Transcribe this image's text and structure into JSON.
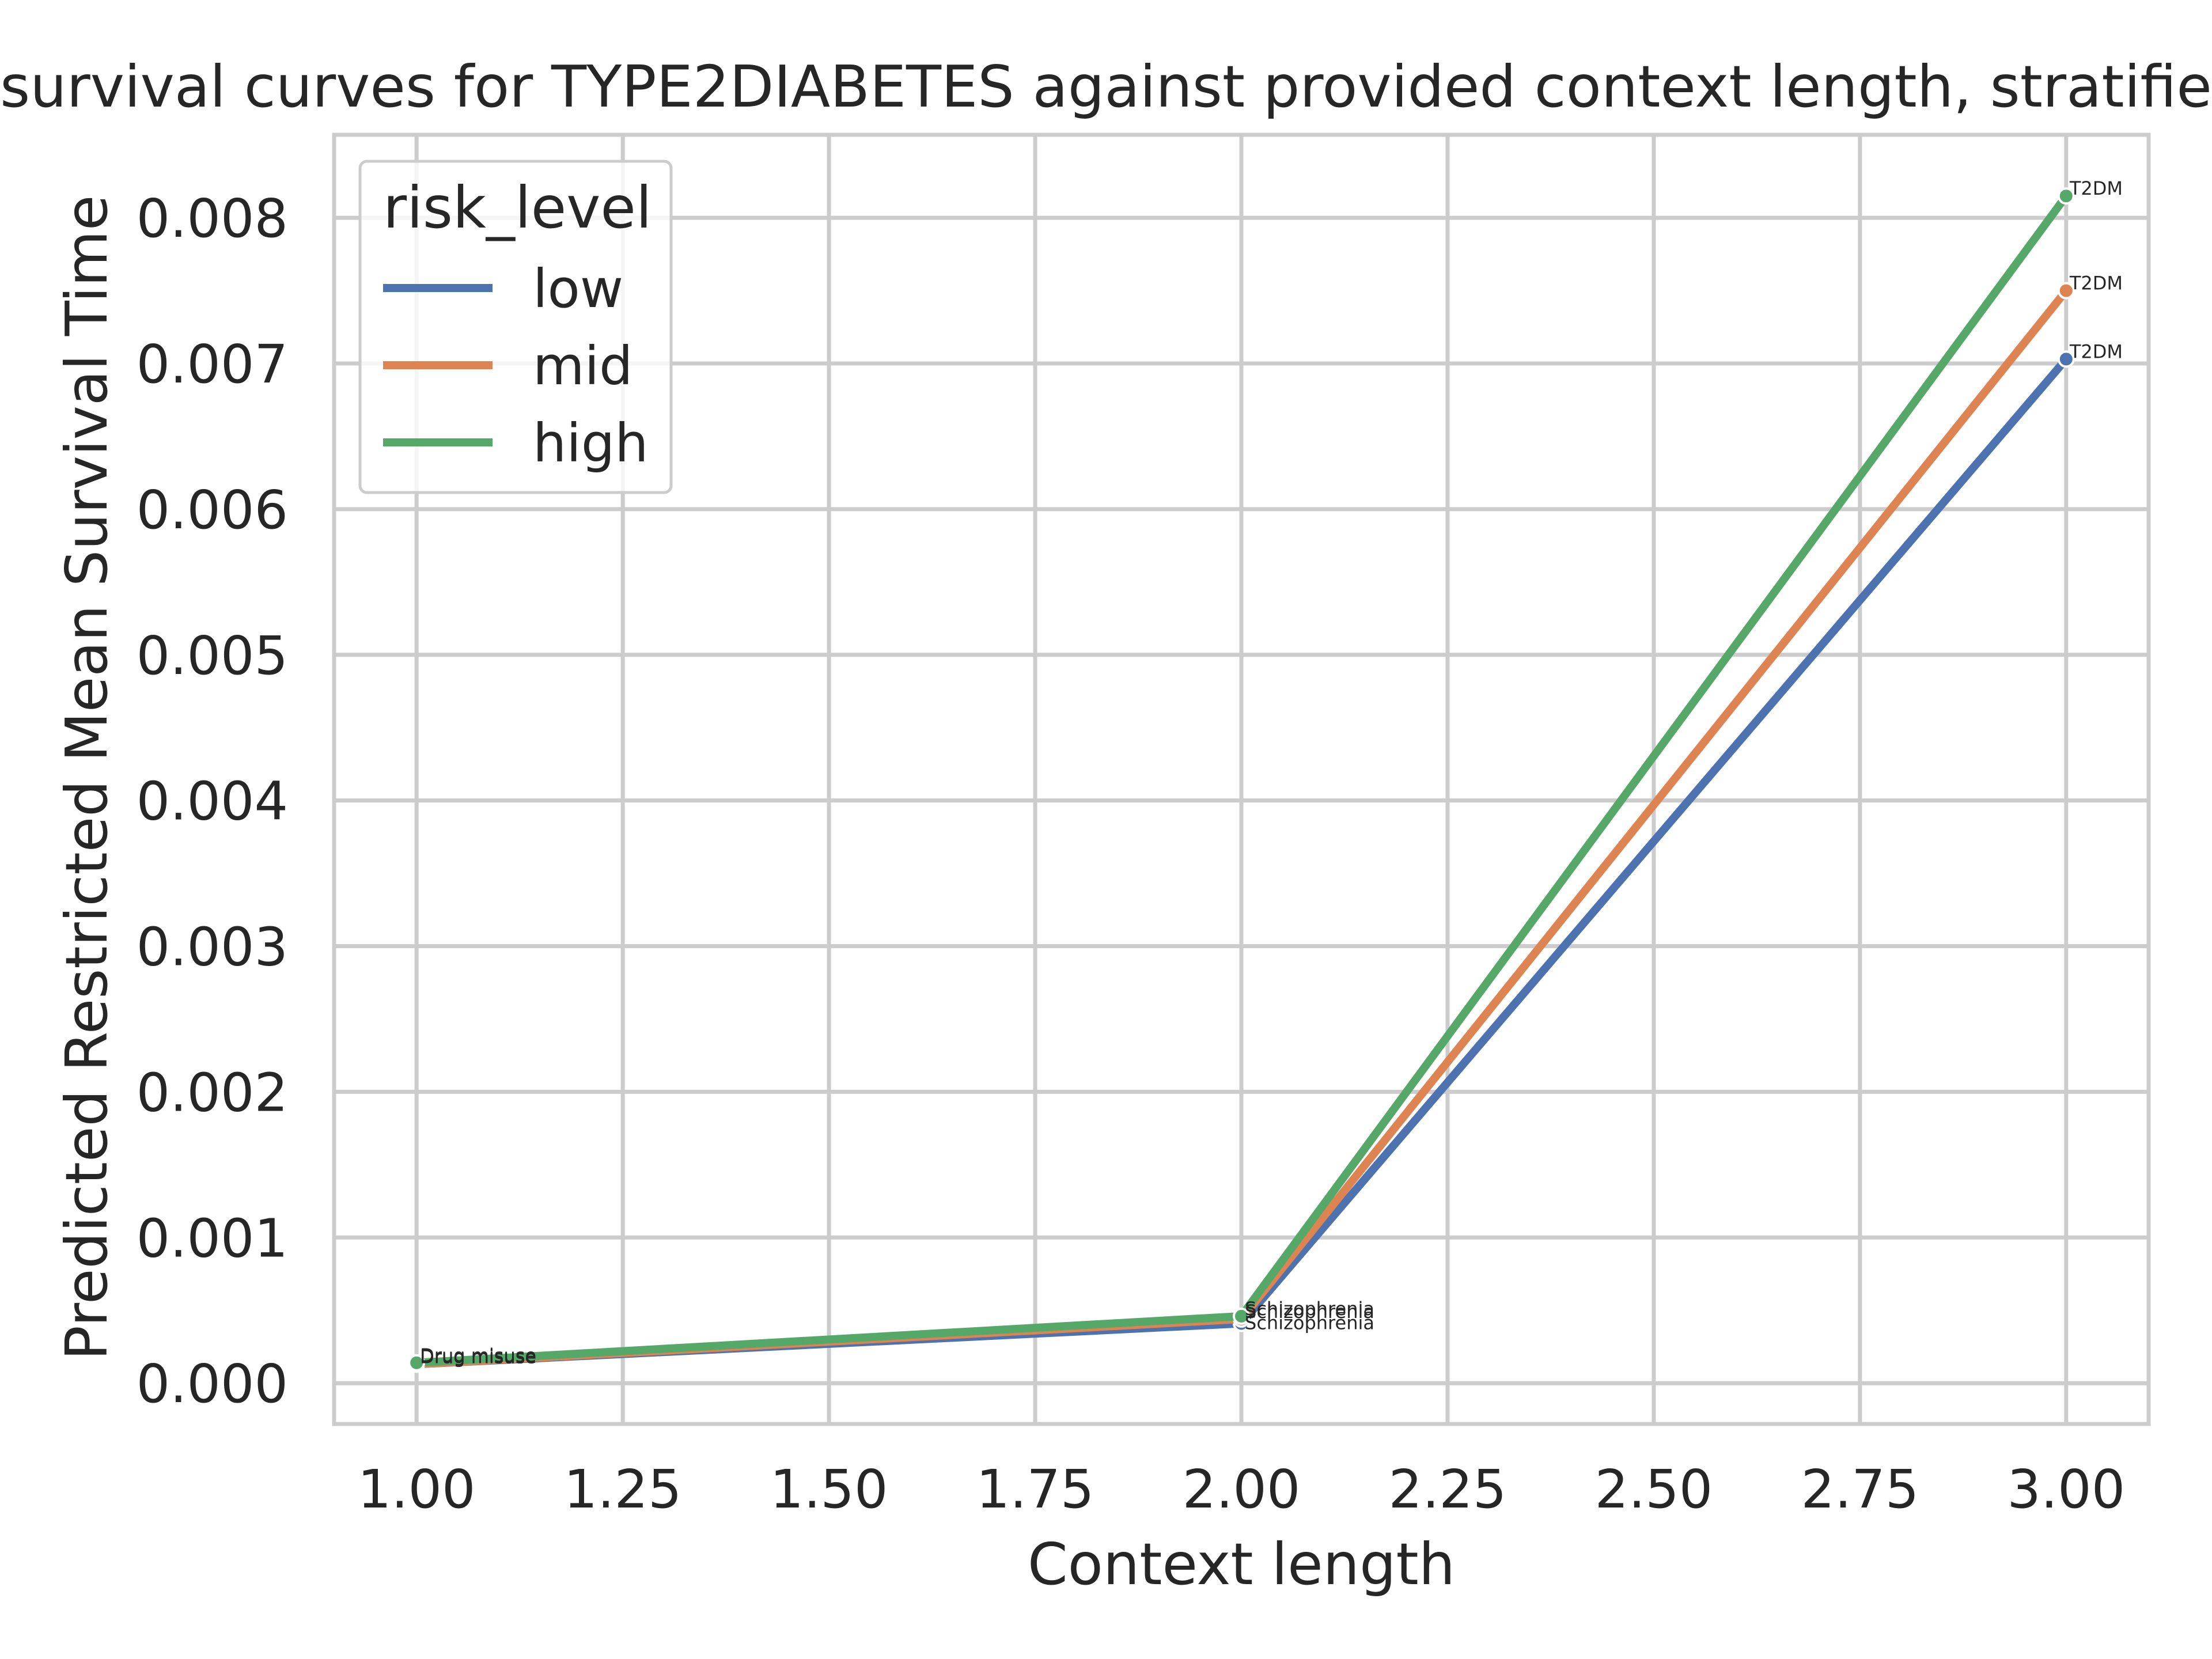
{
  "chart_data": {
    "type": "line",
    "title": "survival curves for TYPE2DIABETES against provided context length, stratifie",
    "xlabel": "Context length",
    "ylabel": "Predicted Restricted Mean Survival Time",
    "xlim": [
      0.9,
      3.1
    ],
    "ylim": [
      -0.00028,
      0.00857
    ],
    "xticks": [
      1.0,
      1.25,
      1.5,
      1.75,
      2.0,
      2.25,
      2.5,
      2.75,
      3.0
    ],
    "xtick_labels": [
      "1.00",
      "1.25",
      "1.50",
      "1.75",
      "2.00",
      "2.25",
      "2.50",
      "2.75",
      "3.00"
    ],
    "yticks": [
      0.0,
      0.001,
      0.002,
      0.003,
      0.004,
      0.005,
      0.006,
      0.007,
      0.008
    ],
    "ytick_labels": [
      "0.000",
      "0.001",
      "0.002",
      "0.003",
      "0.004",
      "0.005",
      "0.006",
      "0.007",
      "0.008"
    ],
    "grid": true,
    "legend": {
      "title": "risk_level",
      "placement": "top-left"
    },
    "x": [
      1,
      2,
      3
    ],
    "point_labels": [
      "Drug misuse",
      "Schizophrenia",
      "T2DM"
    ],
    "series": [
      {
        "name": "low",
        "color": "#4c72b0",
        "values": [
          0.00013,
          0.00041,
          0.00703
        ]
      },
      {
        "name": "mid",
        "color": "#dd8452",
        "values": [
          0.00013,
          0.00044,
          0.0075
        ]
      },
      {
        "name": "high",
        "color": "#55a868",
        "values": [
          0.00014,
          0.00046,
          0.00815
        ]
      }
    ]
  }
}
